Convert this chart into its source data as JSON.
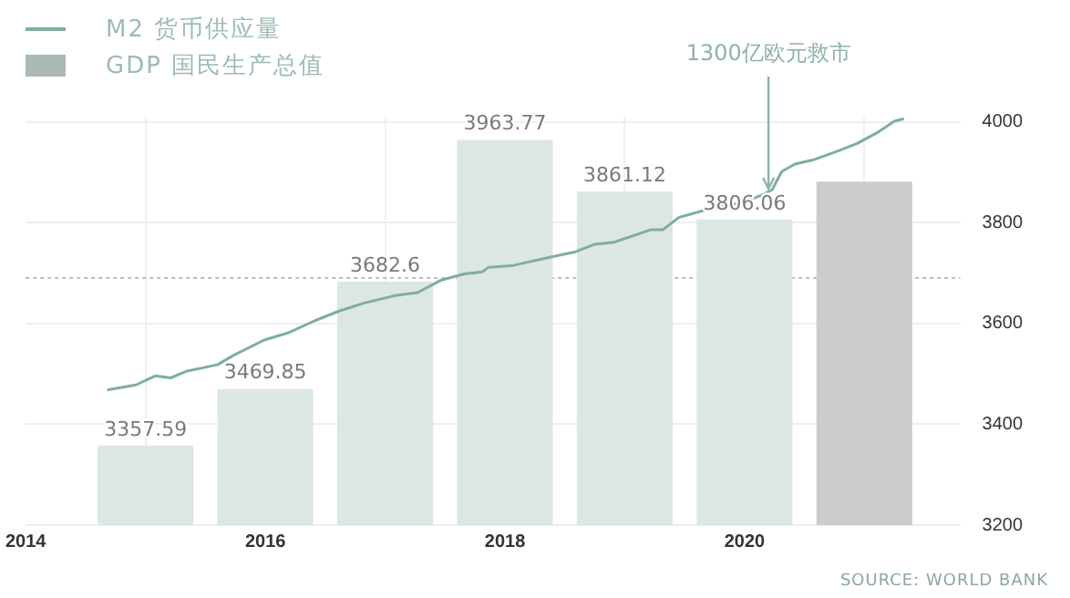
{
  "chart_data": {
    "type": "bar",
    "series": [
      {
        "name": "M2 货币供应量",
        "type": "line",
        "color": "#7fae9c",
        "x": [
          2014.68,
          2014.92,
          2015.08,
          2015.21,
          2015.34,
          2015.6,
          2015.73,
          2015.99,
          2016.2,
          2016.41,
          2016.61,
          2016.82,
          2017.08,
          2017.27,
          2017.47,
          2017.66,
          2017.81,
          2017.86,
          2018.07,
          2018.39,
          2018.59,
          2018.75,
          2018.91,
          2019.06,
          2019.22,
          2019.32,
          2019.45,
          2019.69,
          2020.0,
          2020.16,
          2020.23,
          2020.31,
          2020.42,
          2020.57,
          2020.78,
          2020.94,
          2021.12,
          2021.25,
          2021.33
        ],
        "values": [
          3468,
          3478,
          3496,
          3492,
          3505,
          3518,
          3536,
          3567,
          3582,
          3605,
          3624,
          3640,
          3655,
          3661,
          3686,
          3698,
          3702,
          3711,
          3715,
          3732,
          3742,
          3757,
          3761,
          3773,
          3786,
          3786,
          3810,
          3826,
          3841,
          3856,
          3865,
          3901,
          3916,
          3924,
          3942,
          3957,
          3980,
          4001,
          4006
        ]
      },
      {
        "name": "GDP 国民生产总值",
        "x": [
          2015,
          2016,
          2017,
          2018,
          2019,
          2020,
          2021
        ],
        "values": [
          3357.59,
          3469.85,
          3682.6,
          3963.77,
          3861.12,
          3806.06,
          3881
        ],
        "colors": [
          "#dde7e2",
          "#dde7e2",
          "#dde7e2",
          "#dde7e2",
          "#dde7e2",
          "#dde7e2",
          "#cccccc"
        ],
        "value_labels": [
          "3357.59",
          "3469.85",
          "3682.6",
          "3963.77",
          "3861.12",
          "3806.06",
          null
        ]
      }
    ],
    "xlim": [
      2014,
      2021.8
    ],
    "xticks": [
      2014,
      2016,
      2018,
      2020
    ],
    "ylim": [
      3200,
      4010
    ],
    "yticks": [
      3200,
      3400,
      3600,
      3800,
      4000
    ],
    "ref_lines": [
      {
        "axis": "y",
        "value": 3690,
        "color": "#bbbbbb",
        "line_style": "dotted"
      }
    ],
    "annotations": [
      {
        "text": "1300亿欧元救市",
        "x": 2020.2,
        "y": 3860
      },
      "SOURCE: WORLD BANK"
    ],
    "grid": true,
    "legend": "top left"
  }
}
